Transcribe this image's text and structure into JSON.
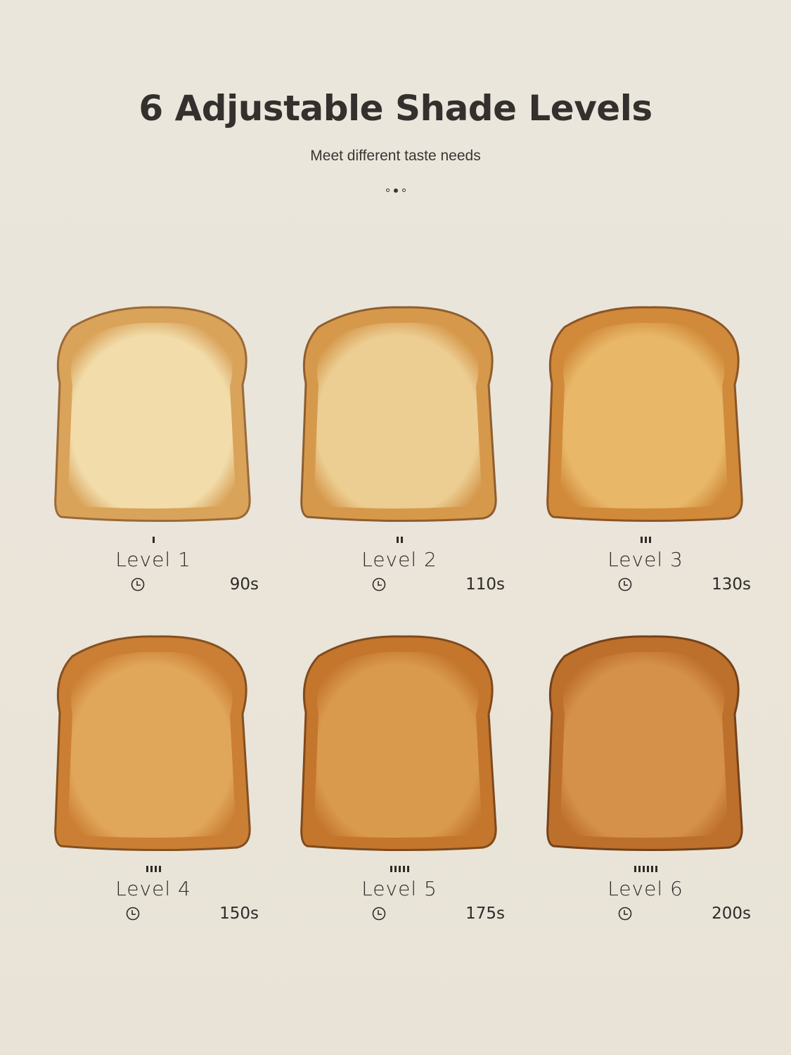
{
  "header": {
    "title": "6 Adjustable Shade Levels",
    "subtitle": "Meet different taste needs",
    "carousel": {
      "count": 3,
      "active": 1
    }
  },
  "levels": [
    {
      "label": "Level 1",
      "time": "90s",
      "ticks": 1,
      "crumb": "#f2dcaa",
      "crust": "#d9a35a",
      "edge": "#9a6a38"
    },
    {
      "label": "Level 2",
      "time": "110s",
      "ticks": 2,
      "crumb": "#ecce93",
      "crust": "#d6994c",
      "edge": "#8e5e2f"
    },
    {
      "label": "Level 3",
      "time": "130s",
      "ticks": 3,
      "crumb": "#e8b768",
      "crust": "#d08a3a",
      "edge": "#8c5526"
    },
    {
      "label": "Level 4",
      "time": "150s",
      "ticks": 4,
      "crumb": "#e0a65a",
      "crust": "#cb7f34",
      "edge": "#84501f"
    },
    {
      "label": "Level 5",
      "time": "175s",
      "ticks": 5,
      "crumb": "#d99a4e",
      "crust": "#c4762d",
      "edge": "#7e4a1c"
    },
    {
      "label": "Level 6",
      "time": "200s",
      "ticks": 6,
      "crumb": "#d5914a",
      "crust": "#bd6f2c",
      "edge": "#74421a"
    }
  ],
  "icons": {
    "time": "clock-icon"
  }
}
